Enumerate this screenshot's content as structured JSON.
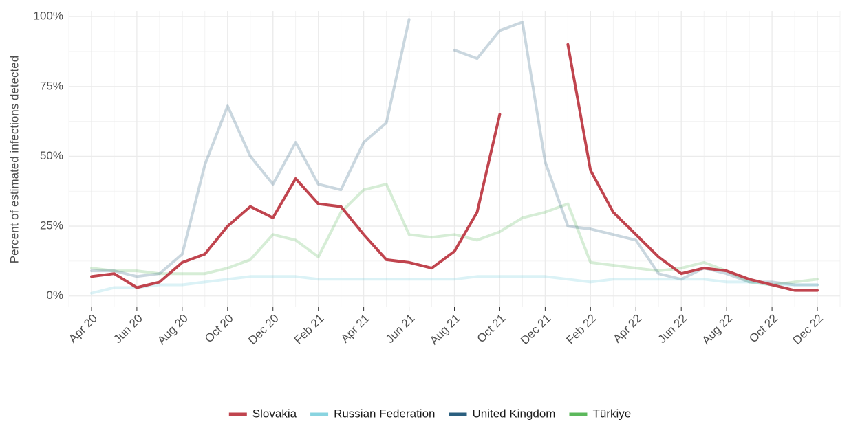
{
  "chart_data": {
    "type": "line",
    "ylabel": "Percent of estimated infections detected",
    "x": [
      "2020-04",
      "2020-05",
      "2020-06",
      "2020-07",
      "2020-08",
      "2020-09",
      "2020-10",
      "2020-11",
      "2020-12",
      "2021-01",
      "2021-02",
      "2021-03",
      "2021-04",
      "2021-05",
      "2021-06",
      "2021-07",
      "2021-08",
      "2021-09",
      "2021-10",
      "2021-11",
      "2021-12",
      "2022-01",
      "2022-02",
      "2022-03",
      "2022-04",
      "2022-05",
      "2022-06",
      "2022-07",
      "2022-08",
      "2022-09",
      "2022-10",
      "2022-11",
      "2022-12"
    ],
    "series": [
      {
        "name": "Slovakia",
        "color": "#c0444e",
        "alpha": 1,
        "values": [
          7,
          8,
          3,
          5,
          12,
          15,
          25,
          32,
          28,
          42,
          33,
          32,
          22,
          13,
          12,
          10,
          16,
          30,
          65,
          null,
          null,
          90,
          45,
          30,
          22,
          14,
          8,
          10,
          9,
          6,
          4,
          2,
          2
        ]
      },
      {
        "name": "Russian Federation",
        "color": "#89d4e0",
        "alpha": 0.3,
        "values": [
          1,
          3,
          3,
          4,
          4,
          5,
          6,
          7,
          7,
          7,
          6,
          6,
          6,
          6,
          6,
          6,
          6,
          7,
          7,
          7,
          7,
          6,
          5,
          6,
          6,
          6,
          6,
          6,
          5,
          5,
          4,
          4,
          4
        ]
      },
      {
        "name": "United Kingdom",
        "color": "#2b5f7f",
        "alpha": 0.25,
        "values": [
          9,
          9,
          7,
          8,
          15,
          47,
          68,
          50,
          40,
          55,
          40,
          38,
          55,
          62,
          99,
          null,
          88,
          85,
          95,
          98,
          48,
          25,
          24,
          22,
          20,
          8,
          6,
          10,
          8,
          5,
          5,
          4,
          4
        ]
      },
      {
        "name": "Türkiye",
        "color": "#5cb85c",
        "alpha": 0.25,
        "values": [
          10,
          9,
          9,
          8,
          8,
          8,
          10,
          13,
          22,
          20,
          14,
          30,
          38,
          40,
          22,
          21,
          22,
          20,
          23,
          28,
          30,
          33,
          12,
          11,
          10,
          9,
          10,
          12,
          9,
          5,
          4,
          5,
          6
        ]
      }
    ],
    "xlim": [
      "2020-03",
      "2023-01"
    ],
    "xticks": [
      {
        "value": "2020-04",
        "label": "Apr 20"
      },
      {
        "value": "2020-06",
        "label": "Jun 20"
      },
      {
        "value": "2020-08",
        "label": "Aug 20"
      },
      {
        "value": "2020-10",
        "label": "Oct 20"
      },
      {
        "value": "2020-12",
        "label": "Dec 20"
      },
      {
        "value": "2021-02",
        "label": "Feb 21"
      },
      {
        "value": "2021-04",
        "label": "Apr 21"
      },
      {
        "value": "2021-06",
        "label": "Jun 21"
      },
      {
        "value": "2021-08",
        "label": "Aug 21"
      },
      {
        "value": "2021-10",
        "label": "Oct 21"
      },
      {
        "value": "2021-12",
        "label": "Dec 21"
      },
      {
        "value": "2022-02",
        "label": "Feb 22"
      },
      {
        "value": "2022-04",
        "label": "Apr 22"
      },
      {
        "value": "2022-06",
        "label": "Jun 22"
      },
      {
        "value": "2022-08",
        "label": "Aug 22"
      },
      {
        "value": "2022-10",
        "label": "Oct 22"
      },
      {
        "value": "2022-12",
        "label": "Dec 22"
      }
    ],
    "ylim": [
      -4,
      102
    ],
    "yticks": [
      {
        "value": 0,
        "label": "0%"
      },
      {
        "value": 25,
        "label": "25%"
      },
      {
        "value": 50,
        "label": "50%"
      },
      {
        "value": 75,
        "label": "75%"
      },
      {
        "value": 100,
        "label": "100%"
      }
    ],
    "grid": true,
    "legend": "bottom"
  }
}
